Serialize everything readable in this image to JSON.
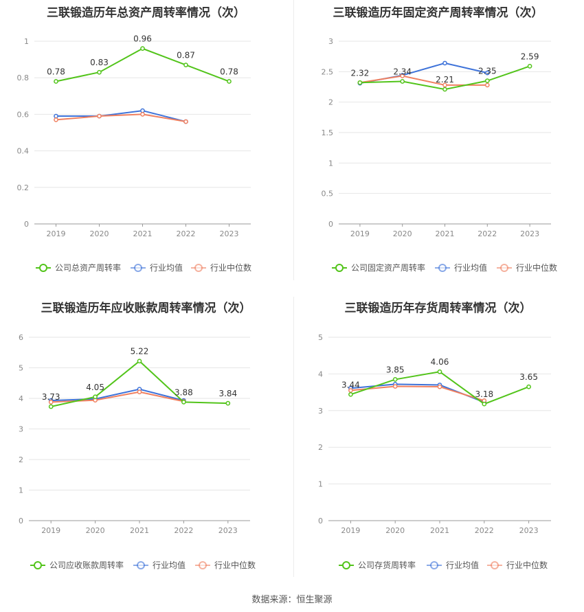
{
  "source": "数据来源：恒生聚源",
  "colors": {
    "company": "#52c41a",
    "avg": "#3d72d9",
    "median": "#f08060"
  },
  "chart_data": [
    {
      "type": "line",
      "title": "三联锻造历年总资产周转率情况（次）",
      "x": [
        "2019",
        "2020",
        "2021",
        "2022",
        "2023"
      ],
      "ylim": [
        0,
        1
      ],
      "yticks": [
        "0",
        "0.2",
        "0.4",
        "0.6",
        "0.8",
        "1"
      ],
      "legend_position": "bottom",
      "series": [
        {
          "name": "公司总资产周转率",
          "values": [
            0.78,
            0.83,
            0.96,
            0.87,
            0.78
          ],
          "labels": [
            "0.78",
            "0.83",
            "0.96",
            "0.87",
            "0.78"
          ]
        },
        {
          "name": "行业均值",
          "values": [
            0.59,
            0.59,
            0.62,
            0.56,
            null
          ]
        },
        {
          "name": "行业中位数",
          "values": [
            0.57,
            0.59,
            0.6,
            0.56,
            null
          ]
        }
      ]
    },
    {
      "type": "line",
      "title": "三联锻造历年固定资产周转率情况（次）",
      "x": [
        "2019",
        "2020",
        "2021",
        "2022",
        "2023"
      ],
      "ylim": [
        0,
        3
      ],
      "yticks": [
        "0",
        "0.5",
        "1",
        "1.5",
        "2",
        "2.5",
        "3"
      ],
      "legend_position": "bottom",
      "series": [
        {
          "name": "公司固定资产周转率",
          "values": [
            2.32,
            2.34,
            2.21,
            2.35,
            2.59
          ],
          "labels": [
            "2.32",
            "2.34",
            "2.21",
            "2.35",
            "2.59"
          ]
        },
        {
          "name": "行业均值",
          "values": [
            2.31,
            2.44,
            2.64,
            2.48,
            null
          ]
        },
        {
          "name": "行业中位数",
          "values": [
            2.32,
            2.43,
            2.28,
            2.28,
            null
          ]
        }
      ]
    },
    {
      "type": "line",
      "title": "三联锻造历年应收账款周转率情况（次）",
      "x": [
        "2019",
        "2020",
        "2021",
        "2022",
        "2023"
      ],
      "ylim": [
        0,
        6
      ],
      "yticks": [
        "0",
        "1",
        "2",
        "3",
        "4",
        "5",
        "6"
      ],
      "legend_position": "bottom",
      "series": [
        {
          "name": "公司应收账款周转率",
          "values": [
            3.73,
            4.05,
            5.22,
            3.88,
            3.84
          ],
          "labels": [
            "3.73",
            "4.05",
            "5.22",
            "3.88",
            "3.84"
          ]
        },
        {
          "name": "行业均值",
          "values": [
            3.93,
            3.98,
            4.3,
            3.93,
            null
          ]
        },
        {
          "name": "行业中位数",
          "values": [
            3.88,
            3.94,
            4.21,
            3.9,
            null
          ]
        }
      ]
    },
    {
      "type": "line",
      "title": "三联锻造历年存货周转率情况（次）",
      "x": [
        "2019",
        "2020",
        "2021",
        "2022",
        "2023"
      ],
      "ylim": [
        0,
        5
      ],
      "yticks": [
        "0",
        "1",
        "2",
        "3",
        "4",
        "5"
      ],
      "legend_position": "bottom",
      "series": [
        {
          "name": "公司存货周转率",
          "values": [
            3.44,
            3.85,
            4.06,
            3.18,
            3.65
          ],
          "labels": [
            "3.44",
            "3.85",
            "4.06",
            "3.18",
            "3.65"
          ]
        },
        {
          "name": "行业均值",
          "values": [
            3.61,
            3.72,
            3.7,
            3.23,
            null
          ]
        },
        {
          "name": "行业中位数",
          "values": [
            3.55,
            3.66,
            3.65,
            3.27,
            null
          ]
        }
      ]
    }
  ]
}
